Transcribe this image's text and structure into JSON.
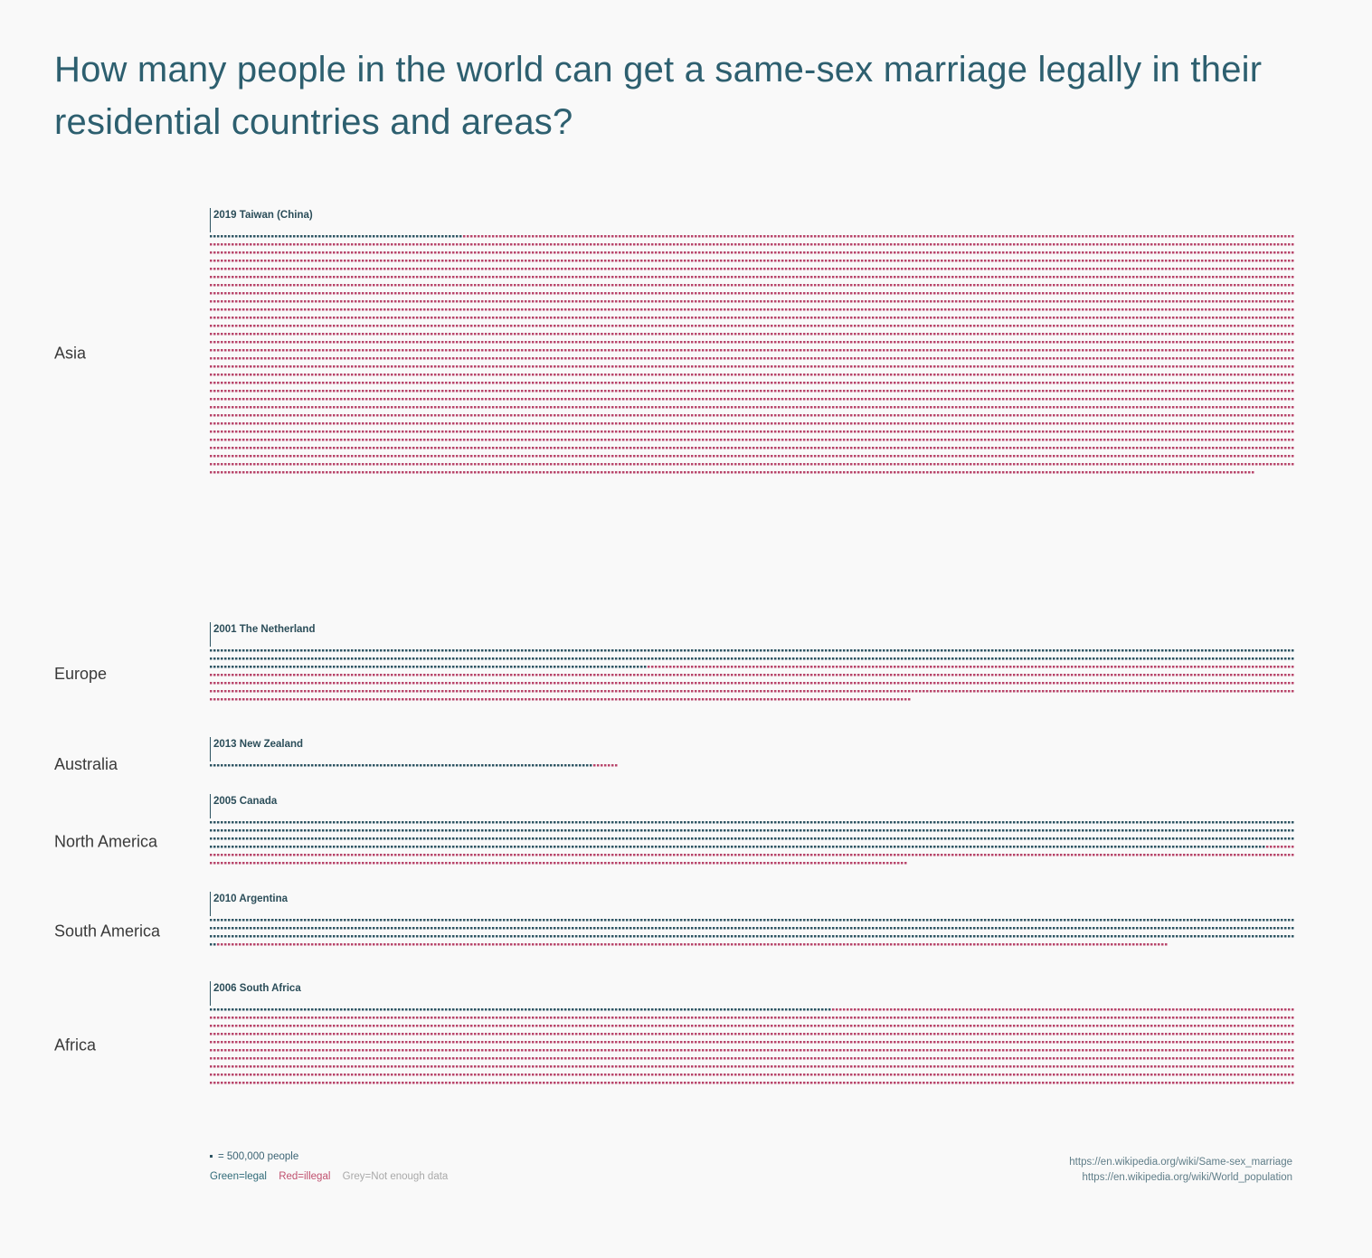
{
  "title": "How many people in the world can get a same-sex marriage legally in their residential countries and areas?",
  "legend": {
    "unit_label": "= 500,000 people",
    "green_label": "Green=legal",
    "red_label": "Red=illegal",
    "grey_label": "Grey=Not enough data"
  },
  "sources": [
    "https://en.wikipedia.org/wiki/Same-sex_marriage",
    "https://en.wikipedia.org/wiki/World_population"
  ],
  "colors": {
    "legal": "#2d5462",
    "illegal": "#b8456a",
    "no_data": "#bbbbbb",
    "title": "#2d5f6f"
  },
  "chart_data": {
    "type": "unit-dot",
    "unit": "1 dot = 500,000 people",
    "dots_per_row": 300,
    "regions": [
      {
        "name": "Asia",
        "milestone": "2019 Taiwan (China)",
        "segments": [
          {
            "status": "legal",
            "dots": 70
          },
          {
            "status": "illegal",
            "dots": 8919
          }
        ]
      },
      {
        "name": "Europe",
        "milestone": "2001 The Netherland",
        "segments": [
          {
            "status": "legal",
            "dots": 52
          },
          {
            "status": "legal",
            "dots": 34
          },
          {
            "status": "legal",
            "dots": 139
          },
          {
            "status": "legal",
            "dots": 16
          },
          {
            "status": "legal",
            "dots": 29
          },
          {
            "status": "legal",
            "dots": 30
          },
          {
            "status": "legal",
            "dots": 11
          },
          {
            "status": "legal",
            "dots": 1
          },
          {
            "status": "legal",
            "dots": 16
          },
          {
            "status": "legal",
            "dots": 191
          },
          {
            "status": "legal",
            "dots": 8
          },
          {
            "status": "legal",
            "dots": 1
          },
          {
            "status": "legal",
            "dots": 15
          },
          {
            "status": "legal",
            "dots": 16
          },
          {
            "status": "legal",
            "dots": 1
          },
          {
            "status": "legal",
            "dots": 24
          },
          {
            "status": "legal",
            "dots": 137
          },
          {
            "status": "illegal",
            "dots": 13
          },
          {
            "status": "illegal",
            "dots": 1
          },
          {
            "status": "illegal",
            "dots": 1259
          }
        ]
      },
      {
        "name": "Australia",
        "milestone": "2013 New Zealand",
        "segments": [
          {
            "status": "legal",
            "dots": 30
          },
          {
            "status": "legal",
            "dots": 76
          },
          {
            "status": "illegal",
            "dots": 7
          }
        ]
      },
      {
        "name": "North America",
        "milestone": "2005 Canada",
        "segments": [
          {
            "status": "legal",
            "dots": 104
          },
          {
            "status": "legal",
            "dots": 686
          },
          {
            "status": "legal",
            "dots": 402
          },
          {
            "status": "illegal",
            "dots": 171
          },
          {
            "status": "illegal",
            "dots": 330
          }
        ]
      },
      {
        "name": "South America",
        "milestone": "2010 Argentina",
        "segments": [
          {
            "status": "legal",
            "dots": 247
          },
          {
            "status": "legal",
            "dots": 352
          },
          {
            "status": "legal",
            "dots": 10
          },
          {
            "status": "legal",
            "dots": 293
          },
          {
            "status": "illegal",
            "dots": 263
          }
        ]
      },
      {
        "name": "Africa",
        "milestone": "2006 South Africa",
        "segments": [
          {
            "status": "legal",
            "dots": 172
          },
          {
            "status": "illegal",
            "dots": 2828
          }
        ]
      }
    ]
  }
}
